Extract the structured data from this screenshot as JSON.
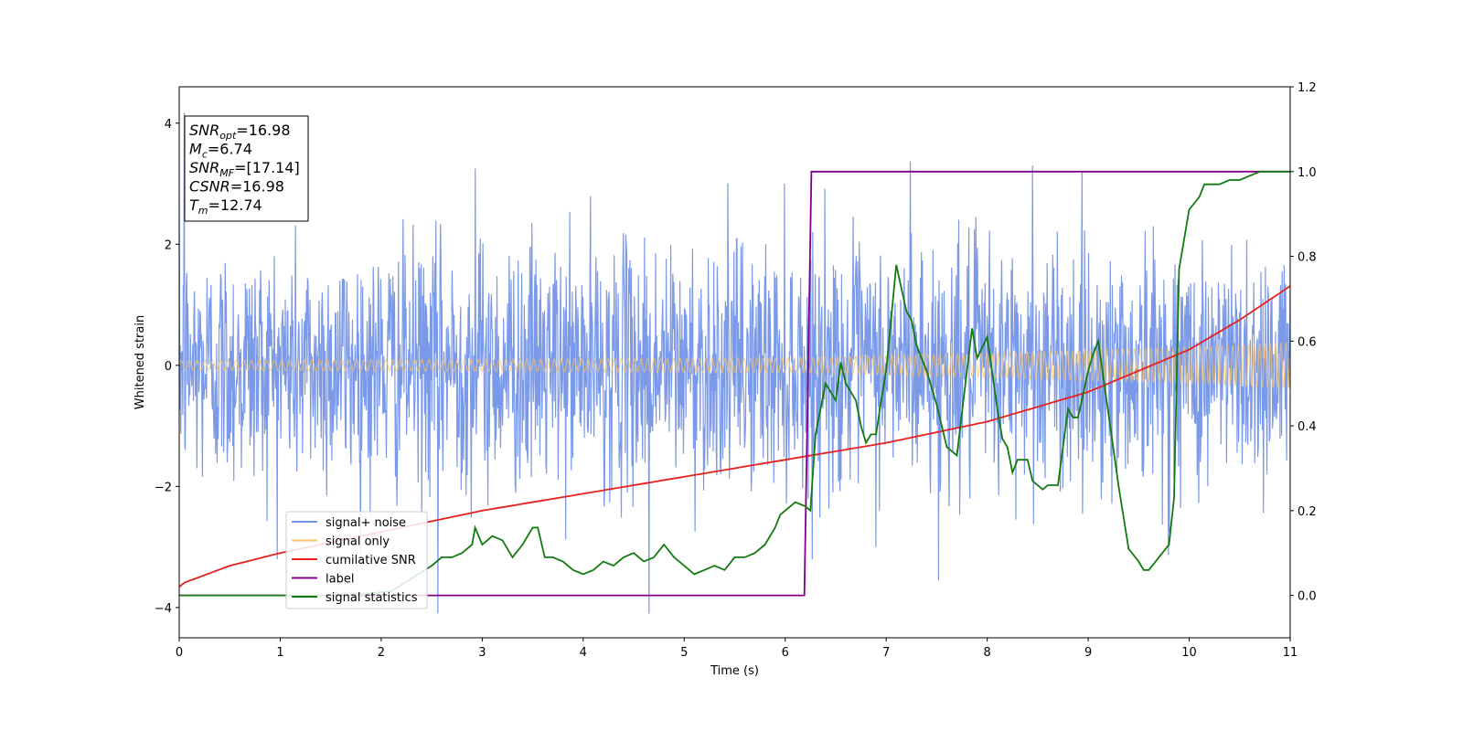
{
  "chart_data": {
    "type": "line",
    "xlabel": "Time (s)",
    "ylabel": "Whitened strain",
    "xlim": [
      0,
      11
    ],
    "ylim_left": [
      -4.5,
      4.6
    ],
    "ylim_right": [
      -0.1,
      1.2
    ],
    "x_ticks": [
      "0",
      "1",
      "2",
      "3",
      "4",
      "5",
      "6",
      "7",
      "8",
      "9",
      "10",
      "11"
    ],
    "y_left_ticks": [
      "−4",
      "−2",
      "0",
      "2",
      "4"
    ],
    "y_right_ticks": [
      "0.0",
      "0.2",
      "0.4",
      "0.6",
      "0.8",
      "1.0",
      "1.2"
    ],
    "grid": false,
    "legend_position": "lower-left",
    "series": [
      {
        "name": "signal+ noise",
        "axis": "left",
        "color": "#7393e8",
        "description_values": {
          "noise_std": 1.0,
          "sample_count": 2200
        },
        "notable_peaks": [
          [
            0.05,
            4.17
          ],
          [
            2.93,
            3.25
          ],
          [
            7.24,
            3.37
          ],
          [
            8.45,
            3.3
          ],
          [
            2.56,
            -4.1
          ],
          [
            4.65,
            -4.1
          ],
          [
            7.52,
            -3.55
          ]
        ]
      },
      {
        "name": "signal only",
        "axis": "left",
        "color": "#f5c36b",
        "envelope": [
          [
            0,
            0.08
          ],
          [
            6,
            0.12
          ],
          [
            8,
            0.2
          ],
          [
            10,
            0.3
          ],
          [
            11,
            0.38
          ]
        ],
        "cycles": 140
      },
      {
        "name": "cumilative SNR",
        "axis": "right",
        "color": "#e8201c",
        "x": [
          0,
          0.05,
          0.5,
          1,
          2,
          3,
          4,
          5,
          6,
          7,
          8,
          9,
          9.5,
          10,
          10.5,
          11
        ],
        "y": [
          0.02,
          0.03,
          0.07,
          0.1,
          0.15,
          0.2,
          0.24,
          0.28,
          0.32,
          0.36,
          0.41,
          0.48,
          0.53,
          0.58,
          0.65,
          0.73
        ]
      },
      {
        "name": "label",
        "axis": "right",
        "color": "#80008a",
        "x": [
          0,
          6.19,
          6.26,
          11
        ],
        "y": [
          0,
          0,
          1,
          1
        ]
      },
      {
        "name": "signal statistics",
        "axis": "right",
        "color": "#117a11",
        "x": [
          0,
          1.5,
          1.9,
          2.1,
          2.3,
          2.5,
          2.6,
          2.7,
          2.8,
          2.9,
          2.93,
          3.0,
          3.1,
          3.2,
          3.3,
          3.4,
          3.5,
          3.55,
          3.62,
          3.7,
          3.8,
          3.9,
          4.0,
          4.1,
          4.2,
          4.3,
          4.4,
          4.5,
          4.6,
          4.7,
          4.8,
          4.9,
          5.0,
          5.1,
          5.2,
          5.3,
          5.4,
          5.5,
          5.6,
          5.7,
          5.8,
          5.9,
          5.95,
          6.0,
          6.1,
          6.2,
          6.25,
          6.3,
          6.4,
          6.5,
          6.55,
          6.6,
          6.7,
          6.75,
          6.8,
          6.85,
          6.9,
          6.95,
          7.0,
          7.1,
          7.2,
          7.25,
          7.3,
          7.4,
          7.5,
          7.6,
          7.7,
          7.8,
          7.85,
          7.9,
          8.0,
          8.1,
          8.15,
          8.2,
          8.25,
          8.3,
          8.4,
          8.45,
          8.55,
          8.6,
          8.7,
          8.8,
          8.85,
          8.9,
          9.0,
          9.05,
          9.1,
          9.2,
          9.3,
          9.4,
          9.5,
          9.55,
          9.6,
          9.7,
          9.8,
          9.85,
          9.9,
          9.95,
          10.0,
          10.1,
          10.15,
          10.3,
          10.4,
          10.5,
          10.7,
          11.0
        ],
        "y": [
          0.0,
          0.0,
          0.005,
          0.01,
          0.04,
          0.07,
          0.09,
          0.09,
          0.1,
          0.12,
          0.16,
          0.12,
          0.14,
          0.13,
          0.09,
          0.12,
          0.16,
          0.16,
          0.09,
          0.09,
          0.08,
          0.06,
          0.05,
          0.06,
          0.08,
          0.07,
          0.09,
          0.1,
          0.08,
          0.09,
          0.12,
          0.09,
          0.07,
          0.05,
          0.06,
          0.07,
          0.06,
          0.09,
          0.09,
          0.1,
          0.12,
          0.16,
          0.19,
          0.2,
          0.22,
          0.21,
          0.2,
          0.38,
          0.5,
          0.46,
          0.55,
          0.5,
          0.46,
          0.4,
          0.36,
          0.38,
          0.38,
          0.46,
          0.53,
          0.78,
          0.67,
          0.65,
          0.59,
          0.53,
          0.45,
          0.35,
          0.33,
          0.53,
          0.63,
          0.56,
          0.61,
          0.44,
          0.37,
          0.35,
          0.29,
          0.32,
          0.32,
          0.27,
          0.25,
          0.26,
          0.26,
          0.44,
          0.42,
          0.42,
          0.53,
          0.57,
          0.6,
          0.43,
          0.26,
          0.11,
          0.08,
          0.06,
          0.06,
          0.09,
          0.12,
          0.23,
          0.77,
          0.84,
          0.91,
          0.94,
          0.97,
          0.97,
          0.98,
          0.98,
          1.0,
          1.0
        ]
      }
    ],
    "annotation": {
      "lines": [
        {
          "sym": "SNR",
          "sub": "opt",
          "val": "=16.98"
        },
        {
          "sym": "M",
          "sub": "c",
          "val": "=6.74"
        },
        {
          "sym": "SNR",
          "sub": "MF",
          "val": "=[17.14]"
        },
        {
          "sym": "CSNR",
          "sub": "",
          "val": "=16.98"
        },
        {
          "sym": "T",
          "sub": "m",
          "val": "=12.74"
        }
      ]
    }
  }
}
